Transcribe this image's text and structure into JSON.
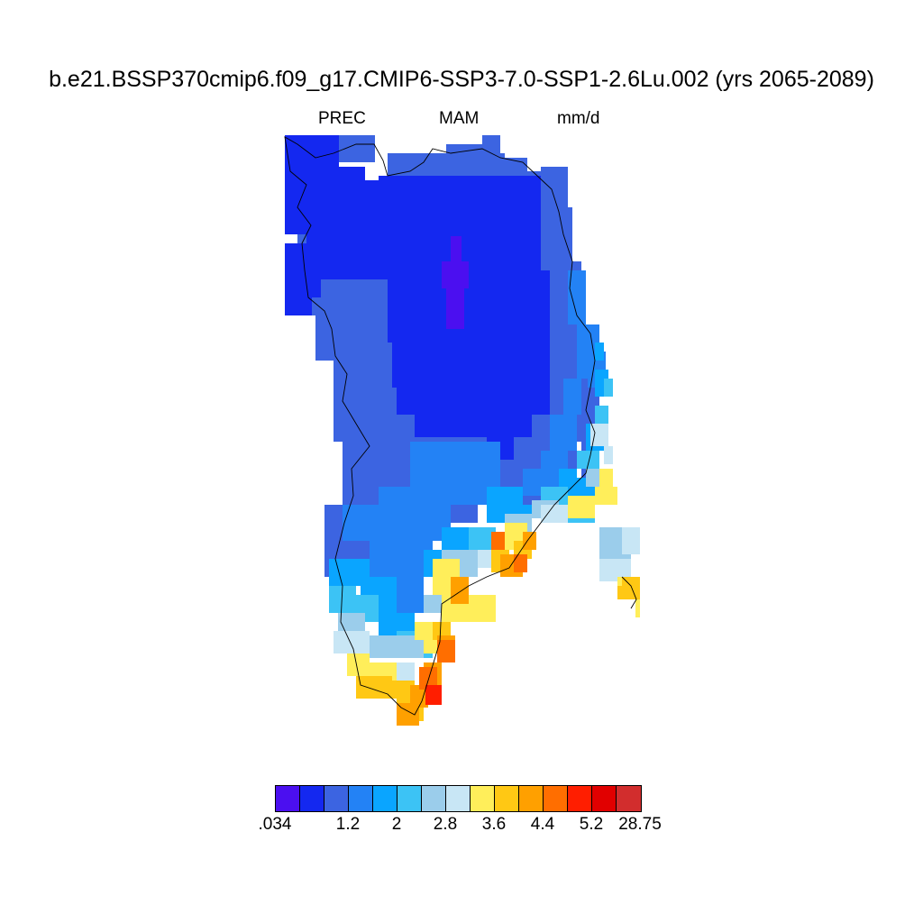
{
  "header": {
    "title": "b.e21.BSSP370cmip6.f09_g17.CMIP6-SSP3-7.0-SSP1-2.6Lu.002 (yrs 2065-2089)",
    "variable": "PREC",
    "season": "MAM",
    "units": "mm/d"
  },
  "colorbar": {
    "colors": [
      "#4b0ff0",
      "#1428f0",
      "#3c64e1",
      "#2382f5",
      "#0aa5ff",
      "#3cc3f5",
      "#9bcdeb",
      "#c8e6f5",
      "#ffee5a",
      "#ffc814",
      "#ffa000",
      "#ff6e00",
      "#ff1e00",
      "#e10000",
      "#d22d2d"
    ],
    "labels": [
      ".034",
      "1.2",
      "2",
      "2.8",
      "3.6",
      "4.4",
      "5.2",
      "28.75"
    ]
  },
  "map": {
    "region": "Greenland",
    "legend_placement": "bottom"
  }
}
